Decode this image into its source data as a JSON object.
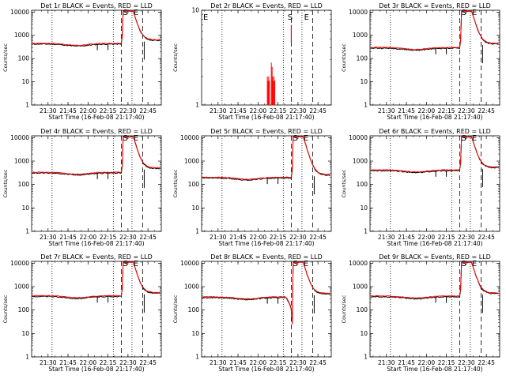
{
  "chart_data": [
    {
      "type": "line",
      "title": "Det 1r BLACK = Events, RED = LLD",
      "xlabel": "Start Time (16-Feb-08 21:17:40)",
      "ylabel": "Counts/sec",
      "x_ticks": [
        "21:30",
        "21:45",
        "22:00",
        "22:15",
        "22:30",
        "22:45"
      ],
      "y_ticks": [
        "1",
        "10",
        "100",
        "1000",
        "10000"
      ],
      "y_scale": "log",
      "ylim": [
        1,
        12000
      ],
      "markers": [
        "S",
        "E"
      ],
      "level_pre": 420,
      "level_post": 600,
      "peak": 11000,
      "profile": "normal"
    },
    {
      "type": "line",
      "title": "Det 2r BLACK = Events, RED = LLD",
      "xlabel": "Start Time (16-Feb-08 21:17:40)",
      "ylabel": "Counts/sec",
      "x_ticks": [
        "21:30",
        "21:45",
        "22:00",
        "22:15",
        "22:30",
        "22:45"
      ],
      "y_ticks": [
        "1",
        "10"
      ],
      "y_scale": "log",
      "ylim": [
        1,
        10
      ],
      "markers": [
        "E",
        "S",
        "E"
      ],
      "profile": "spikes",
      "spikes": [
        {
          "t": "22:07",
          "y": 2.0
        },
        {
          "t": "22:08",
          "y": 2.0
        },
        {
          "t": "22:10",
          "y": 2.8
        },
        {
          "t": "22:11",
          "y": 2.0
        },
        {
          "t": "22:12",
          "y": 2.0
        }
      ]
    },
    {
      "type": "line",
      "title": "Det 3r BLACK = Events, RED = LLD",
      "xlabel": "Start Time (16-Feb-08 21:17:40)",
      "ylabel": "Counts/sec",
      "x_ticks": [
        "21:30",
        "21:45",
        "22:00",
        "22:15",
        "22:30",
        "22:45"
      ],
      "y_ticks": [
        "1",
        "10",
        "100",
        "1000",
        "10000"
      ],
      "y_scale": "log",
      "ylim": [
        1,
        12000
      ],
      "markers": [
        "S",
        "E"
      ],
      "level_pre": 280,
      "level_post": 420,
      "peak": 11000,
      "profile": "normal"
    },
    {
      "type": "line",
      "title": "Det 4r BLACK = Events, RED = LLD",
      "xlabel": "Start Time (16-Feb-08 21:17:40)",
      "ylabel": "Counts/sec",
      "x_ticks": [
        "21:30",
        "21:45",
        "22:00",
        "22:15",
        "22:30",
        "22:45"
      ],
      "y_ticks": [
        "1",
        "10",
        "100",
        "1000",
        "10000"
      ],
      "y_scale": "log",
      "ylim": [
        1,
        12000
      ],
      "markers": [
        "S",
        "E"
      ],
      "level_pre": 310,
      "level_post": 480,
      "peak": 11000,
      "profile": "normal"
    },
    {
      "type": "line",
      "title": "Det 5r BLACK = Events, RED = LLD",
      "xlabel": "Start Time (16-Feb-08 21:17:40)",
      "ylabel": "Counts/sec",
      "x_ticks": [
        "21:30",
        "21:45",
        "22:00",
        "22:15",
        "22:30",
        "22:45"
      ],
      "y_ticks": [
        "1",
        "10",
        "100",
        "1000",
        "10000"
      ],
      "y_scale": "log",
      "ylim": [
        1,
        12000
      ],
      "markers": [
        "S",
        "E"
      ],
      "level_pre": 190,
      "level_post": 250,
      "peak": 11000,
      "profile": "det5"
    },
    {
      "type": "line",
      "title": "Det 6r BLACK = Events, RED = LLD",
      "xlabel": "Start Time (16-Feb-08 21:17:40)",
      "ylabel": "Counts/sec",
      "x_ticks": [
        "21:30",
        "21:45",
        "22:00",
        "22:15",
        "22:30",
        "22:45"
      ],
      "y_ticks": [
        "1",
        "10",
        "100",
        "1000",
        "10000"
      ],
      "y_scale": "log",
      "ylim": [
        1,
        12000
      ],
      "markers": [
        "S",
        "E"
      ],
      "level_pre": 390,
      "level_post": 520,
      "peak": 11000,
      "profile": "normal"
    },
    {
      "type": "line",
      "title": "Det 7r BLACK = Events, RED = LLD",
      "xlabel": "Start Time (16-Feb-08 21:17:40)",
      "ylabel": "Counts/sec",
      "x_ticks": [
        "21:30",
        "21:45",
        "22:00",
        "22:15",
        "22:30",
        "22:45"
      ],
      "y_ticks": [
        "1",
        "10",
        "100",
        "1000",
        "10000"
      ],
      "y_scale": "log",
      "ylim": [
        1,
        12000
      ],
      "markers": [
        "S",
        "E"
      ],
      "level_pre": 380,
      "level_post": 520,
      "peak": 11000,
      "profile": "normal"
    },
    {
      "type": "line",
      "title": "Det 8r BLACK = Events, RED = LLD",
      "xlabel": "Start Time (16-Feb-08 21:17:40)",
      "ylabel": "Counts/sec",
      "x_ticks": [
        "21:30",
        "21:45",
        "22:00",
        "22:15",
        "22:30",
        "22:45"
      ],
      "y_ticks": [
        "1",
        "10",
        "100",
        "1000",
        "10000"
      ],
      "y_scale": "log",
      "ylim": [
        1,
        12000
      ],
      "markers": [
        "S",
        "E"
      ],
      "level_pre": 340,
      "level_post": 480,
      "peak": 11000,
      "profile": "det8"
    },
    {
      "type": "line",
      "title": "Det 9r BLACK = Events, RED = LLD",
      "xlabel": "Start Time (16-Feb-08 21:17:40)",
      "ylabel": "Counts/sec",
      "x_ticks": [
        "21:30",
        "21:45",
        "22:00",
        "22:15",
        "22:30",
        "22:45"
      ],
      "y_ticks": [
        "1",
        "10",
        "100",
        "1000",
        "10000"
      ],
      "y_scale": "log",
      "ylim": [
        1,
        12000
      ],
      "markers": [
        "S",
        "E"
      ],
      "level_pre": 370,
      "level_post": 500,
      "peak": 11000,
      "profile": "normal"
    }
  ],
  "colors": {
    "events": "#000000",
    "lld": "#ff0000"
  }
}
